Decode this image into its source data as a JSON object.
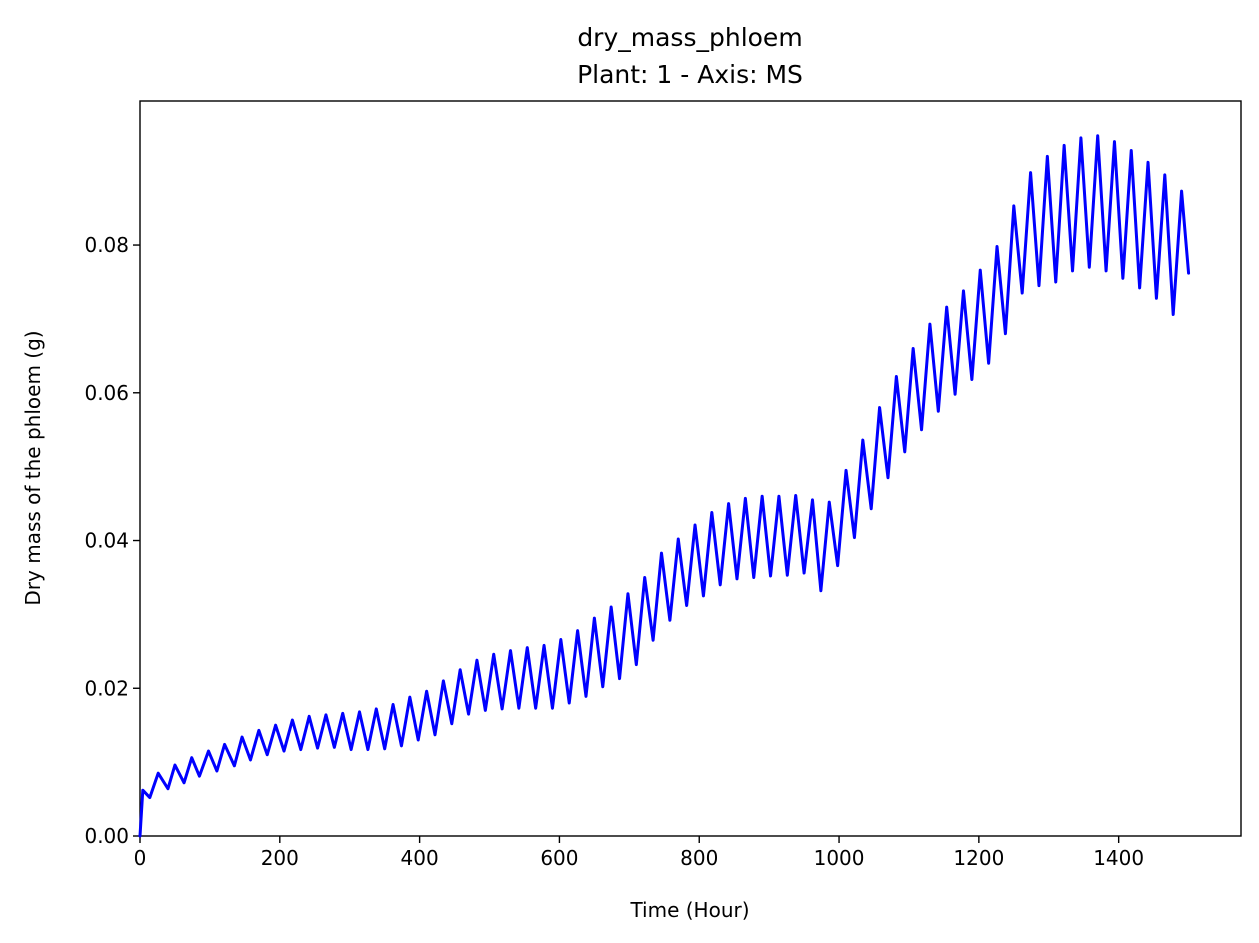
{
  "chart_data": {
    "type": "line",
    "title": "dry_mass_phloem",
    "subtitle": "Plant: 1 - Axis: MS",
    "xlabel": "Time (Hour)",
    "ylabel": "Dry mass of the phloem (g)",
    "xlim": [
      0,
      1575
    ],
    "ylim": [
      0,
      0.0995
    ],
    "grid": false,
    "x_ticks": [
      0,
      200,
      400,
      600,
      800,
      1000,
      1200,
      1400
    ],
    "x_tick_labels": [
      "0",
      "200",
      "400",
      "600",
      "800",
      "1000",
      "1200",
      "1400"
    ],
    "y_ticks": [
      0,
      0.02,
      0.04,
      0.06,
      0.08
    ],
    "y_tick_labels": [
      "0.00",
      "0.02",
      "0.04",
      "0.06",
      "0.08"
    ],
    "series": [
      {
        "color": "#0000ff",
        "x": [
          0,
          4,
          14,
          26,
          40,
          50,
          63,
          74,
          85,
          98,
          110,
          121,
          135,
          146,
          158,
          170,
          182,
          194,
          206,
          218,
          230,
          242,
          254,
          266,
          278,
          290,
          302,
          314,
          326,
          338,
          350,
          362,
          374,
          386,
          398,
          410,
          422,
          434,
          446,
          458,
          470,
          482,
          494,
          506,
          518,
          530,
          542,
          554,
          566,
          578,
          590,
          602,
          614,
          626,
          638,
          650,
          662,
          674,
          686,
          698,
          710,
          722,
          734,
          746,
          758,
          770,
          782,
          794,
          806,
          818,
          830,
          842,
          854,
          866,
          878,
          890,
          902,
          914,
          926,
          938,
          950,
          962,
          974,
          986,
          998,
          1010,
          1022,
          1034,
          1046,
          1058,
          1070,
          1082,
          1094,
          1106,
          1118,
          1130,
          1142,
          1154,
          1166,
          1178,
          1190,
          1202,
          1214,
          1226,
          1238,
          1250,
          1262,
          1274,
          1286,
          1298,
          1310,
          1322,
          1334,
          1346,
          1358,
          1370,
          1382,
          1394,
          1406,
          1418,
          1430,
          1442,
          1454,
          1466,
          1478,
          1490,
          1500
        ],
        "y": [
          0.0,
          0.0062,
          0.0052,
          0.0085,
          0.0064,
          0.0096,
          0.0072,
          0.0106,
          0.0081,
          0.0115,
          0.0088,
          0.0124,
          0.0095,
          0.0134,
          0.0103,
          0.0143,
          0.011,
          0.015,
          0.0115,
          0.0157,
          0.0117,
          0.0162,
          0.0119,
          0.0164,
          0.012,
          0.0166,
          0.0117,
          0.0168,
          0.0117,
          0.0172,
          0.0118,
          0.0178,
          0.0122,
          0.0188,
          0.013,
          0.0196,
          0.0137,
          0.021,
          0.0152,
          0.0225,
          0.0165,
          0.0238,
          0.017,
          0.0246,
          0.0172,
          0.0251,
          0.0173,
          0.0255,
          0.0173,
          0.0258,
          0.0173,
          0.0266,
          0.018,
          0.0278,
          0.0189,
          0.0295,
          0.0202,
          0.031,
          0.0213,
          0.0328,
          0.0232,
          0.035,
          0.0265,
          0.0383,
          0.0292,
          0.0402,
          0.0312,
          0.0421,
          0.0325,
          0.0438,
          0.034,
          0.045,
          0.0348,
          0.0457,
          0.035,
          0.046,
          0.0352,
          0.046,
          0.0353,
          0.0461,
          0.0356,
          0.0455,
          0.0332,
          0.0452,
          0.0366,
          0.0495,
          0.0404,
          0.0536,
          0.0443,
          0.058,
          0.0485,
          0.0622,
          0.052,
          0.066,
          0.055,
          0.0693,
          0.0575,
          0.0716,
          0.0598,
          0.0738,
          0.0618,
          0.0766,
          0.064,
          0.0798,
          0.068,
          0.0853,
          0.0735,
          0.0898,
          0.0745,
          0.092,
          0.075,
          0.0935,
          0.0765,
          0.0945,
          0.077,
          0.0948,
          0.0765,
          0.094,
          0.0755,
          0.0928,
          0.0742,
          0.0912,
          0.0728,
          0.0895,
          0.0706,
          0.0873,
          0.0762
        ]
      }
    ]
  }
}
